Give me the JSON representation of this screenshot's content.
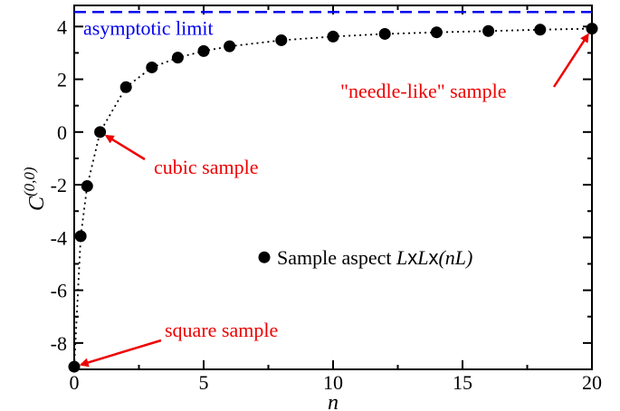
{
  "chart_data": {
    "type": "scatter",
    "title": "",
    "xlabel": "n",
    "ylabel_base": "C",
    "ylabel_sup": "(0,0)",
    "xlim": [
      0,
      20
    ],
    "ylim": [
      -9,
      4.8
    ],
    "xticks": [
      0,
      5,
      10,
      15,
      20
    ],
    "yticks": [
      -8,
      -6,
      -4,
      -2,
      0,
      2,
      4
    ],
    "grid": false,
    "series": [
      {
        "name": "Sample aspect LxLx(nL)",
        "marker": "filled-circle",
        "line": "dotted",
        "x": [
          0,
          0.25,
          0.5,
          1,
          2,
          3,
          4,
          5,
          6,
          8,
          10,
          12,
          14,
          16,
          18,
          20
        ],
        "y": [
          -8.9,
          -3.95,
          -2.05,
          0.0,
          1.7,
          2.45,
          2.82,
          3.07,
          3.25,
          3.48,
          3.62,
          3.72,
          3.78,
          3.83,
          3.88,
          3.92
        ]
      }
    ],
    "asymptote": {
      "label": "asymptotic limit",
      "y": 4.55,
      "color": "#0000ee"
    },
    "legend": {
      "placement": "center-right",
      "text_prefix": "Sample aspect ",
      "text_italic": "L",
      "text_x1": "x",
      "text_italic2": "L",
      "text_x2": "x",
      "text_italic3": "(nL)"
    },
    "annotations": [
      {
        "text": "square sample",
        "target_x": 0,
        "target_y": -8.9,
        "color": "#ee0000"
      },
      {
        "text": "cubic sample",
        "target_x": 1,
        "target_y": 0.0,
        "color": "#ee0000"
      },
      {
        "text": "\"needle-like\" sample",
        "target_x": 20,
        "target_y": 3.92,
        "color": "#ee0000"
      }
    ]
  }
}
